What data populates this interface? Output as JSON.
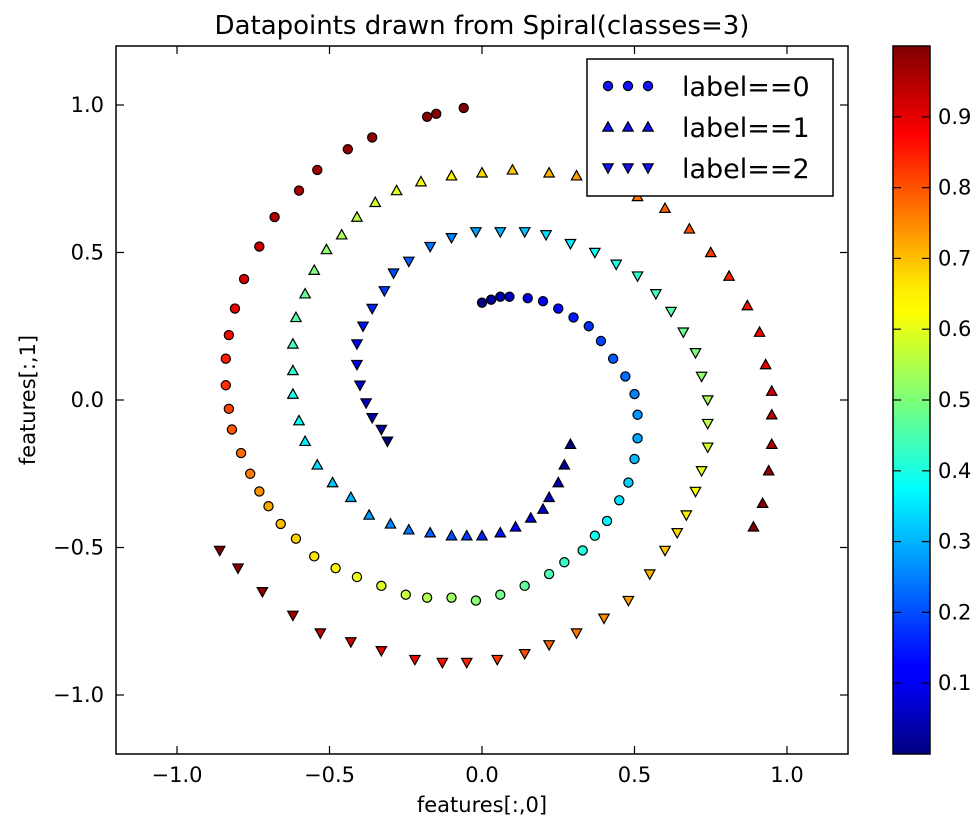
{
  "chart_data": {
    "type": "scatter",
    "title": "Datapoints drawn from Spiral(classes=3)",
    "xlabel": "features[:,0]",
    "ylabel": "features[:,1]",
    "xlim": [
      -1.2,
      1.2
    ],
    "ylim": [
      -1.2,
      1.2
    ],
    "xticks": [
      -1.0,
      -0.5,
      0.0,
      0.5,
      1.0
    ],
    "yticks": [
      -1.0,
      -0.5,
      0.0,
      0.5,
      1.0
    ],
    "xtick_labels": [
      "−1.0",
      "−0.5",
      "0.0",
      "0.5",
      "1.0"
    ],
    "ytick_labels": [
      "−1.0",
      "−0.5",
      "0.0",
      "0.5",
      "1.0"
    ],
    "grid": false,
    "legend_position": "top-right",
    "colormap": "jet",
    "colorbar": {
      "range": [
        0.0,
        1.0
      ],
      "ticks": [
        0.1,
        0.2,
        0.3,
        0.4,
        0.5,
        0.6,
        0.7,
        0.8,
        0.9
      ],
      "tick_labels": [
        "0.1",
        "0.2",
        "0.3",
        "0.4",
        "0.5",
        "0.6",
        "0.7",
        "0.8",
        "0.9"
      ]
    },
    "series": [
      {
        "name": "label==0",
        "marker": "circle",
        "points": [
          [
            0.0,
            0.33,
            0.0
          ],
          [
            0.03,
            0.34,
            0.02
          ],
          [
            0.06,
            0.35,
            0.04
          ],
          [
            0.09,
            0.35,
            0.06
          ],
          [
            0.15,
            0.345,
            0.09
          ],
          [
            0.2,
            0.335,
            0.11
          ],
          [
            0.25,
            0.31,
            0.13
          ],
          [
            0.3,
            0.28,
            0.15
          ],
          [
            0.35,
            0.25,
            0.17
          ],
          [
            0.39,
            0.2,
            0.19
          ],
          [
            0.43,
            0.14,
            0.21
          ],
          [
            0.47,
            0.08,
            0.23
          ],
          [
            0.5,
            0.02,
            0.25
          ],
          [
            0.51,
            -0.05,
            0.27
          ],
          [
            0.51,
            -0.13,
            0.29
          ],
          [
            0.5,
            -0.2,
            0.31
          ],
          [
            0.48,
            -0.28,
            0.33
          ],
          [
            0.45,
            -0.34,
            0.35
          ],
          [
            0.41,
            -0.41,
            0.37
          ],
          [
            0.37,
            -0.46,
            0.39
          ],
          [
            0.33,
            -0.51,
            0.41
          ],
          [
            0.27,
            -0.55,
            0.43
          ],
          [
            0.22,
            -0.59,
            0.45
          ],
          [
            0.14,
            -0.63,
            0.47
          ],
          [
            0.06,
            -0.66,
            0.49
          ],
          [
            -0.02,
            -0.68,
            0.51
          ],
          [
            -0.1,
            -0.67,
            0.53
          ],
          [
            -0.18,
            -0.67,
            0.55
          ],
          [
            -0.25,
            -0.66,
            0.57
          ],
          [
            -0.33,
            -0.63,
            0.59
          ],
          [
            -0.41,
            -0.6,
            0.61
          ],
          [
            -0.48,
            -0.57,
            0.63
          ],
          [
            -0.55,
            -0.53,
            0.65
          ],
          [
            -0.61,
            -0.47,
            0.67
          ],
          [
            -0.66,
            -0.42,
            0.69
          ],
          [
            -0.7,
            -0.36,
            0.71
          ],
          [
            -0.73,
            -0.31,
            0.73
          ],
          [
            -0.76,
            -0.25,
            0.75
          ],
          [
            -0.79,
            -0.18,
            0.77
          ],
          [
            -0.82,
            -0.1,
            0.79
          ],
          [
            -0.83,
            -0.03,
            0.81
          ],
          [
            -0.84,
            0.05,
            0.83
          ],
          [
            -0.84,
            0.14,
            0.85
          ],
          [
            -0.83,
            0.22,
            0.87
          ],
          [
            -0.81,
            0.31,
            0.89
          ],
          [
            -0.78,
            0.41,
            0.91
          ],
          [
            -0.73,
            0.52,
            0.93
          ],
          [
            -0.68,
            0.62,
            0.95
          ],
          [
            -0.6,
            0.71,
            0.96
          ],
          [
            -0.54,
            0.78,
            0.97
          ],
          [
            -0.44,
            0.85,
            0.98
          ],
          [
            -0.36,
            0.89,
            0.985
          ],
          [
            -0.18,
            0.96,
            0.99
          ],
          [
            -0.15,
            0.97,
            0.995
          ],
          [
            -0.06,
            0.99,
            1.0
          ]
        ]
      },
      {
        "name": "label==1",
        "marker": "triangle-up",
        "points": [
          [
            0.29,
            -0.15,
            0.0
          ],
          [
            0.27,
            -0.22,
            0.02
          ],
          [
            0.25,
            -0.28,
            0.04
          ],
          [
            0.22,
            -0.33,
            0.06
          ],
          [
            0.2,
            -0.37,
            0.08
          ],
          [
            0.16,
            -0.4,
            0.1
          ],
          [
            0.11,
            -0.43,
            0.12
          ],
          [
            0.06,
            -0.45,
            0.14
          ],
          [
            0.0,
            -0.46,
            0.16
          ],
          [
            -0.05,
            -0.46,
            0.18
          ],
          [
            -0.1,
            -0.46,
            0.2
          ],
          [
            -0.17,
            -0.45,
            0.22
          ],
          [
            -0.24,
            -0.44,
            0.24
          ],
          [
            -0.3,
            -0.42,
            0.26
          ],
          [
            -0.37,
            -0.39,
            0.28
          ],
          [
            -0.43,
            -0.33,
            0.3
          ],
          [
            -0.49,
            -0.28,
            0.32
          ],
          [
            -0.54,
            -0.22,
            0.34
          ],
          [
            -0.58,
            -0.14,
            0.36
          ],
          [
            -0.6,
            -0.07,
            0.38
          ],
          [
            -0.62,
            0.02,
            0.4
          ],
          [
            -0.62,
            0.1,
            0.42
          ],
          [
            -0.62,
            0.19,
            0.44
          ],
          [
            -0.61,
            0.28,
            0.46
          ],
          [
            -0.58,
            0.36,
            0.48
          ],
          [
            -0.55,
            0.44,
            0.5
          ],
          [
            -0.51,
            0.51,
            0.52
          ],
          [
            -0.46,
            0.56,
            0.54
          ],
          [
            -0.41,
            0.62,
            0.56
          ],
          [
            -0.35,
            0.67,
            0.58
          ],
          [
            -0.28,
            0.71,
            0.6
          ],
          [
            -0.2,
            0.74,
            0.62
          ],
          [
            -0.1,
            0.76,
            0.64
          ],
          [
            0.0,
            0.77,
            0.66
          ],
          [
            0.1,
            0.78,
            0.68
          ],
          [
            0.22,
            0.77,
            0.7
          ],
          [
            0.31,
            0.76,
            0.72
          ],
          [
            0.4,
            0.74,
            0.74
          ],
          [
            0.51,
            0.69,
            0.76
          ],
          [
            0.6,
            0.65,
            0.78
          ],
          [
            0.68,
            0.58,
            0.8
          ],
          [
            0.75,
            0.5,
            0.82
          ],
          [
            0.81,
            0.42,
            0.84
          ],
          [
            0.87,
            0.32,
            0.86
          ],
          [
            0.91,
            0.23,
            0.88
          ],
          [
            0.93,
            0.12,
            0.9
          ],
          [
            0.95,
            0.03,
            0.92
          ],
          [
            0.95,
            -0.05,
            0.94
          ],
          [
            0.95,
            -0.15,
            0.96
          ],
          [
            0.94,
            -0.24,
            0.98
          ],
          [
            0.92,
            -0.35,
            0.99
          ],
          [
            0.89,
            -0.43,
            1.0
          ]
        ]
      },
      {
        "name": "label==2",
        "marker": "triangle-down",
        "points": [
          [
            -0.31,
            -0.14,
            0.0
          ],
          [
            -0.33,
            -0.1,
            0.02
          ],
          [
            -0.36,
            -0.06,
            0.04
          ],
          [
            -0.38,
            -0.01,
            0.06
          ],
          [
            -0.4,
            0.05,
            0.08
          ],
          [
            -0.41,
            0.12,
            0.1
          ],
          [
            -0.41,
            0.19,
            0.12
          ],
          [
            -0.39,
            0.25,
            0.14
          ],
          [
            -0.36,
            0.31,
            0.16
          ],
          [
            -0.32,
            0.37,
            0.18
          ],
          [
            -0.29,
            0.43,
            0.2
          ],
          [
            -0.24,
            0.47,
            0.22
          ],
          [
            -0.17,
            0.52,
            0.24
          ],
          [
            -0.1,
            0.55,
            0.26
          ],
          [
            -0.02,
            0.57,
            0.28
          ],
          [
            0.06,
            0.57,
            0.3
          ],
          [
            0.14,
            0.57,
            0.32
          ],
          [
            0.21,
            0.56,
            0.34
          ],
          [
            0.29,
            0.53,
            0.36
          ],
          [
            0.37,
            0.5,
            0.38
          ],
          [
            0.44,
            0.46,
            0.4
          ],
          [
            0.51,
            0.42,
            0.42
          ],
          [
            0.57,
            0.36,
            0.44
          ],
          [
            0.62,
            0.3,
            0.46
          ],
          [
            0.66,
            0.23,
            0.48
          ],
          [
            0.7,
            0.16,
            0.5
          ],
          [
            0.72,
            0.08,
            0.52
          ],
          [
            0.74,
            0.0,
            0.54
          ],
          [
            0.74,
            -0.08,
            0.56
          ],
          [
            0.74,
            -0.16,
            0.58
          ],
          [
            0.72,
            -0.24,
            0.6
          ],
          [
            0.7,
            -0.31,
            0.62
          ],
          [
            0.67,
            -0.39,
            0.64
          ],
          [
            0.64,
            -0.45,
            0.66
          ],
          [
            0.6,
            -0.51,
            0.68
          ],
          [
            0.55,
            -0.59,
            0.7
          ],
          [
            0.48,
            -0.68,
            0.72
          ],
          [
            0.4,
            -0.74,
            0.74
          ],
          [
            0.31,
            -0.79,
            0.76
          ],
          [
            0.22,
            -0.83,
            0.78
          ],
          [
            0.14,
            -0.86,
            0.8
          ],
          [
            0.05,
            -0.88,
            0.82
          ],
          [
            -0.05,
            -0.89,
            0.84
          ],
          [
            -0.13,
            -0.89,
            0.86
          ],
          [
            -0.22,
            -0.88,
            0.88
          ],
          [
            -0.33,
            -0.85,
            0.9
          ],
          [
            -0.43,
            -0.82,
            0.92
          ],
          [
            -0.53,
            -0.79,
            0.94
          ],
          [
            -0.62,
            -0.73,
            0.96
          ],
          [
            -0.72,
            -0.65,
            0.98
          ],
          [
            -0.8,
            -0.57,
            0.99
          ],
          [
            -0.86,
            -0.51,
            1.0
          ]
        ]
      }
    ]
  }
}
